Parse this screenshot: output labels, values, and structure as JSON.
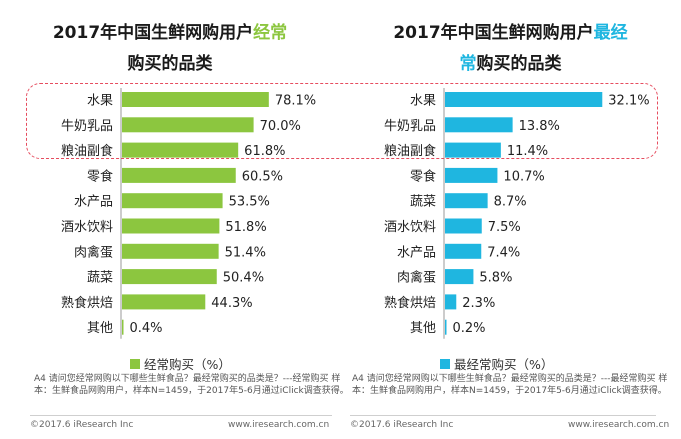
{
  "left": {
    "title_line1_plain": "2017年中国生鲜网购用户",
    "title_line1_highlight": "经常",
    "title_line2_plain": "购买的品类",
    "legend_label": "经常购买（%）",
    "note": "A4 请问您经常网购以下哪些生鲜食品？最经常购买的品类是？---经常购买 样本：生鲜食品网购用户，样本N=1459，于2017年5-6月通过iClick调查获得。",
    "footer_left": "©2017.6 iResearch Inc",
    "footer_right": "www.iresearch.com.cn"
  },
  "right": {
    "title_line1_plain": "2017年中国生鲜网购用户",
    "title_line1_highlight": "最经",
    "title_line2_highlight": "常",
    "title_line2_plain": "购买的品类",
    "legend_label": "最经常购买（%）",
    "note": "A4 请问您经常网购以下哪些生鲜食品？最经常购买的品类是？---最经常购买 样本：生鲜食品网购用户，样本N=1459，于2017年5-6月通过iClick调查获得。",
    "footer_left": "©2017.6 iResearch Inc",
    "footer_right": "www.iresearch.com.cn"
  },
  "colors": {
    "left_bar": "#8cc63f",
    "right_bar": "#1fb6e0",
    "highlight_border": "#e64d5f"
  },
  "chart_data": [
    {
      "type": "bar",
      "orientation": "horizontal",
      "categories": [
        "水果",
        "牛奶乳品",
        "粮油副食",
        "零食",
        "水产品",
        "酒水饮料",
        "肉禽蛋",
        "蔬菜",
        "熟食烘焙",
        "其他"
      ],
      "values": [
        78.1,
        70.0,
        61.8,
        60.5,
        53.5,
        51.8,
        51.4,
        50.4,
        44.3,
        0.4
      ],
      "value_labels": [
        "78.1%",
        "70.0%",
        "61.8%",
        "60.5%",
        "53.5%",
        "51.8%",
        "51.4%",
        "50.4%",
        "44.3%",
        "0.4%"
      ],
      "series_name": "经常购买（%）",
      "xlim": [
        0,
        100
      ],
      "grid": false,
      "legend": "bottom"
    },
    {
      "type": "bar",
      "orientation": "horizontal",
      "categories": [
        "水果",
        "牛奶乳品",
        "粮油副食",
        "零食",
        "蔬菜",
        "酒水饮料",
        "水产品",
        "肉禽蛋",
        "熟食烘焙",
        "其他"
      ],
      "values": [
        32.1,
        13.8,
        11.4,
        10.7,
        8.7,
        7.5,
        7.4,
        5.8,
        2.3,
        0.2
      ],
      "value_labels": [
        "32.1%",
        "13.8%",
        "11.4%",
        "10.7%",
        "8.7%",
        "7.5%",
        "7.4%",
        "5.8%",
        "2.3%",
        "0.2%"
      ],
      "series_name": "最经常购买（%）",
      "xlim": [
        0,
        40
      ],
      "grid": false,
      "legend": "bottom"
    }
  ]
}
